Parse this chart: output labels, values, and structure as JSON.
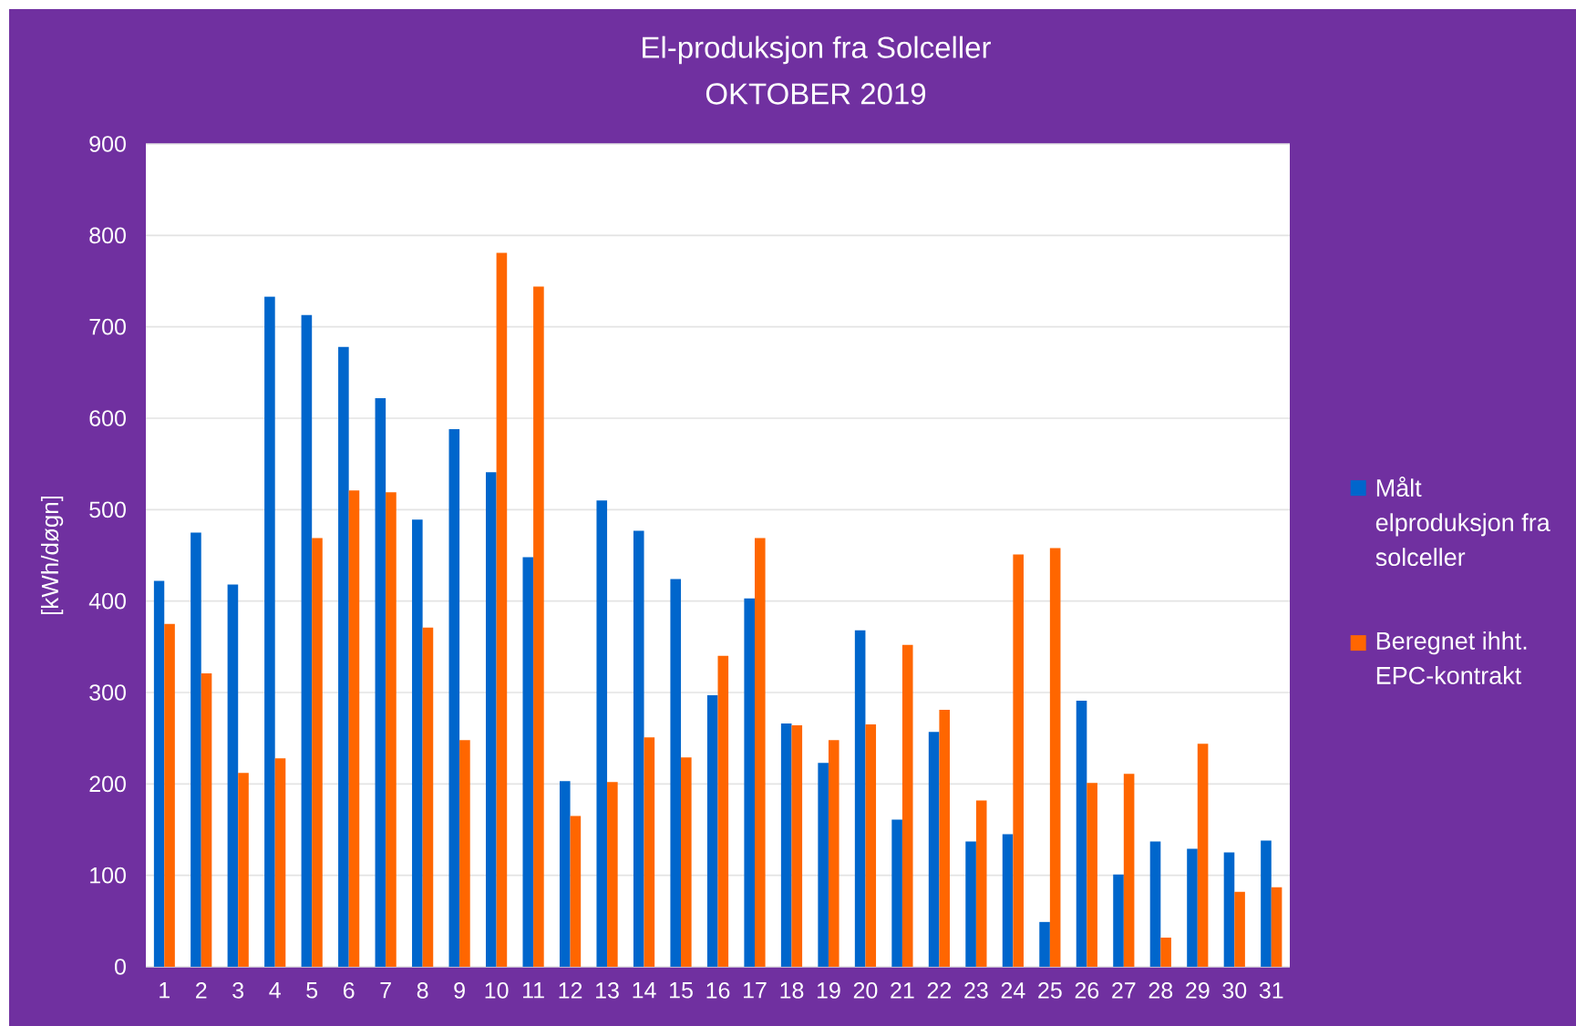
{
  "chart_data": {
    "type": "bar",
    "title": "El-produksjon fra Solceller",
    "subtitle": "OKTOBER 2019",
    "ylabel": "[kWh/døgn]",
    "categories": [
      "1",
      "2",
      "3",
      "4",
      "5",
      "6",
      "7",
      "8",
      "9",
      "10",
      "11",
      "12",
      "13",
      "14",
      "15",
      "16",
      "17",
      "18",
      "19",
      "20",
      "21",
      "22",
      "23",
      "24",
      "25",
      "26",
      "27",
      "28",
      "29",
      "30",
      "31"
    ],
    "series": [
      {
        "name": "Målt elproduksjon fra solceller",
        "color": "#0066cc",
        "values": [
          422,
          475,
          418,
          733,
          713,
          678,
          622,
          489,
          588,
          541,
          448,
          203,
          510,
          477,
          424,
          297,
          403,
          266,
          223,
          368,
          161,
          257,
          137,
          145,
          49,
          291,
          101,
          137,
          129,
          125,
          138
        ]
      },
      {
        "name": "Beregnet ihht. EPC-kontrakt",
        "color": "#ff6600",
        "values": [
          375,
          321,
          212,
          228,
          469,
          521,
          519,
          371,
          248,
          781,
          744,
          165,
          202,
          251,
          229,
          340,
          469,
          264,
          248,
          265,
          352,
          281,
          182,
          451,
          458,
          201,
          211,
          32,
          244,
          82,
          87
        ]
      }
    ],
    "ylim": [
      0,
      900
    ],
    "yticks": [
      0,
      100,
      200,
      300,
      400,
      500,
      600,
      700,
      800,
      900
    ],
    "grid": "y",
    "legend": "right"
  }
}
